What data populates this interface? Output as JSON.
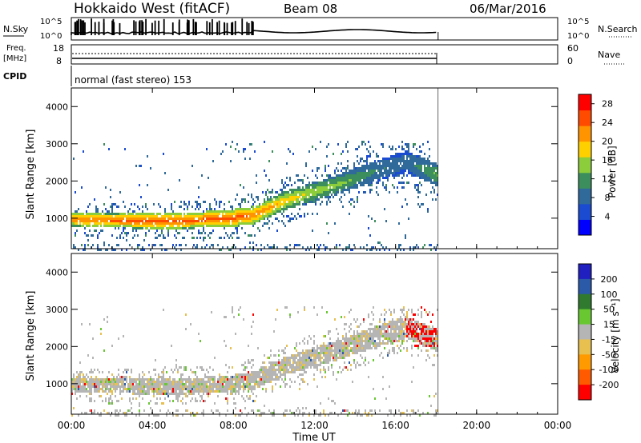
{
  "header": {
    "station": "Hokkaido West (fitACF)",
    "beam": "Beam 08",
    "date": "06/Mar/2016"
  },
  "noise_panel": {
    "left_label": "N.Sky",
    "right_label": "N.Search",
    "left_ticks": [
      "10^5",
      "10^0"
    ],
    "right_ticks": [
      "10^5",
      "10^0"
    ]
  },
  "freq_panel": {
    "left_label_1": "Freq.",
    "left_label_2": "[MHz]",
    "left_ticks": [
      "18",
      "8"
    ],
    "right_label": "Nave",
    "right_ticks": [
      "60",
      "0"
    ]
  },
  "cpid": {
    "label": "CPID",
    "value": "normal (fast stereo) 153"
  },
  "colors": {
    "power_scale": [
      "#0000ff",
      "#1a4bd0",
      "#2f6a9a",
      "#3c8f5c",
      "#8ccd3c",
      "#ffd000",
      "#ff9400",
      "#ff4b00",
      "#ff0000"
    ],
    "velocity_scale": [
      "#2020c0",
      "#2a5aa8",
      "#2f7a2f",
      "#69c832",
      "#b5b5b5",
      "#e8c050",
      "#ff9a00",
      "#ff5a00",
      "#ff0000"
    ]
  },
  "chart_data": [
    {
      "type": "heatmap",
      "panel": "power",
      "ylabel": "Slant Range [km]",
      "xlabel": "Time UT",
      "x_ticks": [
        "00:00",
        "04:00",
        "08:00",
        "12:00",
        "16:00",
        "20:00",
        "00:00"
      ],
      "xlim_hours": [
        0,
        24
      ],
      "ylim_km": [
        180,
        4500
      ],
      "y_ticks": [
        1000,
        2000,
        3000,
        4000
      ],
      "data_end_hour": 18.1,
      "colorbar": {
        "label": "Power [dB]",
        "ticks": [
          4,
          8,
          12,
          16,
          20,
          24,
          28
        ],
        "range": [
          0,
          30
        ]
      },
      "scatter_bands": [
        {
          "t": [
            0.0,
            2.0,
            4.0,
            6.0,
            7.5,
            9.0,
            10.5,
            12.0,
            13.5,
            15.0,
            16.5,
            18.0
          ],
          "range_km": [
            1000,
            960,
            960,
            980,
            1000,
            1120,
            1500,
            1750,
            2000,
            2300,
            2550,
            2200
          ],
          "power_db": [
            24,
            25,
            26,
            26,
            27,
            25,
            20,
            16,
            14,
            10,
            8,
            14
          ]
        }
      ]
    },
    {
      "type": "heatmap",
      "panel": "velocity",
      "ylabel": "Slant Range [km]",
      "xlabel": "Time UT",
      "x_ticks": [
        "00:00",
        "04:00",
        "08:00",
        "12:00",
        "16:00",
        "20:00",
        "00:00"
      ],
      "xlim_hours": [
        0,
        24
      ],
      "ylim_km": [
        180,
        4500
      ],
      "y_ticks": [
        1000,
        2000,
        3000,
        4000
      ],
      "data_end_hour": 18.1,
      "colorbar": {
        "label": "Velocity [m s⁻¹]",
        "ticks": [
          200,
          100,
          50,
          15,
          -15,
          -50,
          -100,
          -200
        ]
      },
      "dominant_velocity_m_s": [
        -15,
        15
      ]
    }
  ]
}
